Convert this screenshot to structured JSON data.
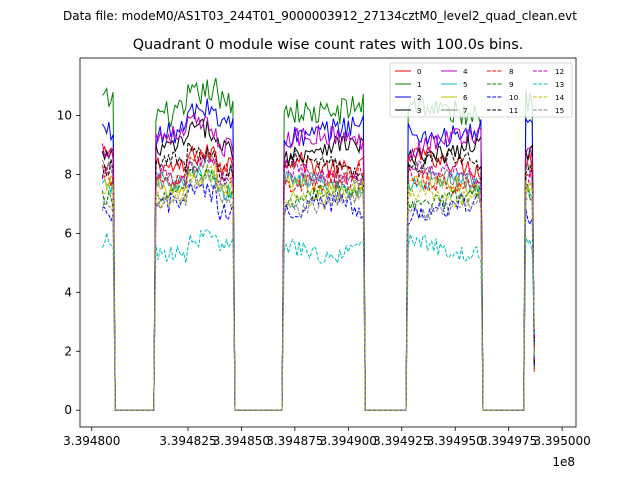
{
  "chart_data": {
    "type": "line",
    "suptitle": "Data file: modeM0/AS1T03_244T01_9000003912_27134cztM0_level2_quad_clean.evt",
    "title": "Quadrant 0 module wise count rates with 100.0s bins.",
    "xlabel": "",
    "ylabel": "",
    "x_offset_label": "1e8",
    "xlim": [
      3.3947745,
      3.3950065
    ],
    "ylim": [
      -0.57,
      11.95
    ],
    "x_ticks": [
      3.39478,
      3.394825,
      3.39485,
      3.394875,
      3.3949,
      3.394925,
      3.39495,
      3.394975,
      3.395
    ],
    "x_tick_labels": [
      "3.394800",
      "3.394825",
      "3.394850",
      "3.394875",
      "3.394900",
      "3.394925",
      "3.394950",
      "3.394975",
      "3.395000"
    ],
    "y_ticks": [
      0,
      2,
      4,
      6,
      8,
      10
    ],
    "y_tick_labels": [
      "0",
      "2",
      "4",
      "6",
      "8",
      "10"
    ],
    "grid": false,
    "legend_position": "top-right",
    "segments": [
      {
        "x_start": 3.394785,
        "x_end": 3.39479,
        "note": "active"
      },
      {
        "x_start": 3.394791,
        "x_end": 3.394809,
        "note": "zero"
      },
      {
        "x_start": 3.39481,
        "x_end": 3.394846,
        "note": "active"
      },
      {
        "x_start": 3.394847,
        "x_end": 3.394869,
        "note": "zero"
      },
      {
        "x_start": 3.39487,
        "x_end": 3.394907,
        "note": "active"
      },
      {
        "x_start": 3.394908,
        "x_end": 3.394927,
        "note": "zero"
      },
      {
        "x_start": 3.394928,
        "x_end": 3.394962,
        "note": "active"
      },
      {
        "x_start": 3.394963,
        "x_end": 3.394982,
        "note": "zero"
      },
      {
        "x_start": 3.394983,
        "x_end": 3.394987,
        "note": "active"
      }
    ],
    "series": [
      {
        "name": "0",
        "color": "#ff0000",
        "dash": "solid",
        "level": 8.4,
        "amplitude": 0.35
      },
      {
        "name": "1",
        "color": "#008000",
        "dash": "solid",
        "level": 10.3,
        "amplitude": 0.45
      },
      {
        "name": "2",
        "color": "#0000ff",
        "dash": "solid",
        "level": 9.5,
        "amplitude": 0.4
      },
      {
        "name": "3",
        "color": "#000000",
        "dash": "solid",
        "level": 8.8,
        "amplitude": 0.35
      },
      {
        "name": "4",
        "color": "#bf00bf",
        "dash": "solid",
        "level": 9.1,
        "amplitude": 0.35
      },
      {
        "name": "5",
        "color": "#00bfbf",
        "dash": "solid",
        "level": 7.6,
        "amplitude": 0.3
      },
      {
        "name": "6",
        "color": "#bfbf00",
        "dash": "solid",
        "level": 7.6,
        "amplitude": 0.3
      },
      {
        "name": "7",
        "color": "#808080",
        "dash": "solid",
        "level": 8.0,
        "amplitude": 0.3
      },
      {
        "name": "8",
        "color": "#ff0000",
        "dash": "dashed",
        "level": 7.9,
        "amplitude": 0.35
      },
      {
        "name": "9",
        "color": "#008000",
        "dash": "dashed",
        "level": 7.3,
        "amplitude": 0.3
      },
      {
        "name": "10",
        "color": "#0000ff",
        "dash": "dashed",
        "level": 6.8,
        "amplitude": 0.35
      },
      {
        "name": "11",
        "color": "#000000",
        "dash": "dashed",
        "level": 8.3,
        "amplitude": 0.3
      },
      {
        "name": "12",
        "color": "#bf00bf",
        "dash": "dashed",
        "level": 8.0,
        "amplitude": 0.3
      },
      {
        "name": "13",
        "color": "#00bfbf",
        "dash": "dashed",
        "level": 5.5,
        "amplitude": 0.3
      },
      {
        "name": "14",
        "color": "#bfbf00",
        "dash": "dashed",
        "level": 7.4,
        "amplitude": 0.3
      },
      {
        "name": "15",
        "color": "#808080",
        "dash": "dashed",
        "level": 7.0,
        "amplitude": 0.3
      }
    ]
  }
}
